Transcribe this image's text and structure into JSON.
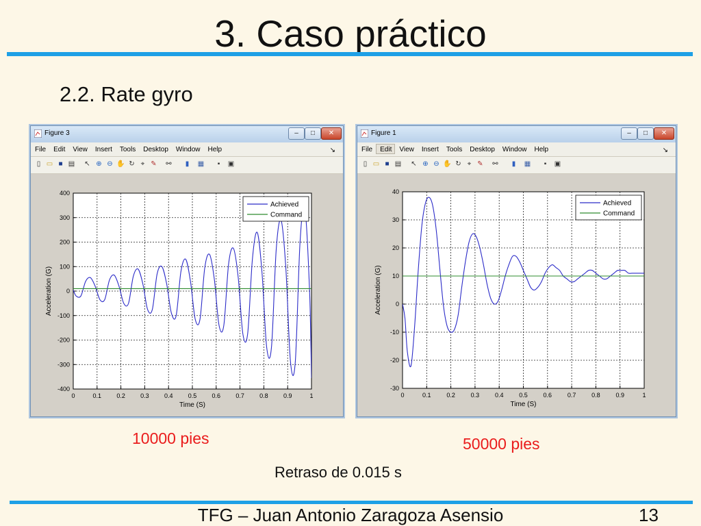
{
  "slide": {
    "title": "3. Caso práctico",
    "subtitle": "2.2. Rate gyro",
    "caption_left": "10000 pies",
    "caption_right": "50000 pies",
    "caption_center": "Retraso de 0.015 s",
    "footer": "TFG – Juan Antonio Zaragoza Asensio",
    "page_number": "13",
    "accent_color": "#1ea0e6",
    "caption_color": "#ea1c1c"
  },
  "windows": [
    {
      "title": "Figure 3",
      "menu": [
        "File",
        "Edit",
        "View",
        "Insert",
        "Tools",
        "Desktop",
        "Window",
        "Help"
      ],
      "controls": [
        "minimize",
        "maximize",
        "close"
      ],
      "toolbar_icons": [
        "new-figure-icon",
        "open-file-icon",
        "save-icon",
        "print-icon",
        "edit-plot-icon",
        "zoom-in-icon",
        "zoom-out-icon",
        "pan-icon",
        "rotate-icon",
        "data-cursor-icon",
        "brush-icon",
        "link-icon",
        "colorbar-icon",
        "legend-icon",
        "hide-plot-tools-icon",
        "show-plot-tools-icon"
      ]
    },
    {
      "title": "Figure 1",
      "menu": [
        "File",
        "Edit",
        "View",
        "Insert",
        "Tools",
        "Desktop",
        "Window",
        "Help"
      ],
      "controls": [
        "minimize",
        "maximize",
        "close"
      ],
      "toolbar_icons": [
        "new-figure-icon",
        "open-file-icon",
        "save-icon",
        "print-icon",
        "edit-plot-icon",
        "zoom-in-icon",
        "zoom-out-icon",
        "pan-icon",
        "rotate-icon",
        "data-cursor-icon",
        "brush-icon",
        "link-icon",
        "colorbar-icon",
        "legend-icon",
        "hide-plot-tools-icon",
        "show-plot-tools-icon"
      ]
    }
  ],
  "chart_data": [
    {
      "type": "line",
      "title": "",
      "xlabel": "Time (S)",
      "ylabel": "Acceleration (G)",
      "xlim": [
        0,
        1
      ],
      "ylim": [
        -400,
        400
      ],
      "xticks": [
        0,
        0.1,
        0.2,
        0.3,
        0.4,
        0.5,
        0.6,
        0.7,
        0.8,
        0.9,
        1
      ],
      "xtick_labels": [
        "0",
        "0.1",
        "0.2",
        "0.3",
        "0.4",
        "0.5",
        "0.6",
        "0.7",
        "0.8",
        "0.9",
        "1"
      ],
      "yticks": [
        400,
        300,
        200,
        100,
        0,
        -100,
        -200,
        -300,
        -400
      ],
      "ytick_labels": [
        "400",
        "300",
        "200",
        "100",
        "0",
        "-100",
        "-200",
        "-300",
        "-400"
      ],
      "grid": true,
      "legend_position": "top-right",
      "series": [
        {
          "name": "Achieved",
          "color": "#2b2bc8",
          "x": [
            0,
            0.012,
            0.032,
            0.052,
            0.072,
            0.092,
            0.112,
            0.132,
            0.152,
            0.172,
            0.192,
            0.212,
            0.232,
            0.252,
            0.272,
            0.292,
            0.312,
            0.332,
            0.352,
            0.372,
            0.392,
            0.412,
            0.432,
            0.452,
            0.472,
            0.492,
            0.512,
            0.532,
            0.552,
            0.572,
            0.592,
            0.612,
            0.632,
            0.652,
            0.672,
            0.692,
            0.712,
            0.732,
            0.752,
            0.772,
            0.792,
            0.812,
            0.832,
            0.852,
            0.872,
            0.892,
            0.912,
            0.932,
            0.952,
            0.972,
            0.992,
            1
          ],
          "y": [
            5,
            -20,
            -20,
            40,
            55,
            20,
            -35,
            -35,
            45,
            65,
            20,
            -50,
            -50,
            60,
            90,
            30,
            -75,
            -75,
            70,
            100,
            30,
            -90,
            -100,
            80,
            130,
            40,
            -115,
            -115,
            95,
            150,
            50,
            -140,
            -140,
            110,
            175,
            60,
            -175,
            -175,
            130,
            240,
            80,
            -230,
            -230,
            170,
            290,
            100,
            -290,
            -290,
            200,
            340,
            0,
            -355
          ]
        },
        {
          "name": "Command",
          "color": "#2e8b2e",
          "x": [
            0,
            1
          ],
          "y": [
            10,
            10
          ]
        }
      ]
    },
    {
      "type": "line",
      "title": "",
      "xlabel": "Time (S)",
      "ylabel": "Acceleration (G)",
      "xlim": [
        0,
        1
      ],
      "ylim": [
        -30,
        40
      ],
      "xticks": [
        0,
        0.1,
        0.2,
        0.3,
        0.4,
        0.5,
        0.6,
        0.7,
        0.8,
        0.9,
        1
      ],
      "xtick_labels": [
        "0",
        "0.1",
        "0.2",
        "0.3",
        "0.4",
        "0.5",
        "0.6",
        "0.7",
        "0.8",
        "0.9",
        "1"
      ],
      "yticks": [
        40,
        30,
        20,
        10,
        0,
        -10,
        -20,
        -30
      ],
      "ytick_labels": [
        "40",
        "30",
        "20",
        "10",
        "0",
        "-10",
        "-20",
        "-30"
      ],
      "grid": true,
      "legend_position": "top-right",
      "series": [
        {
          "name": "Achieved",
          "color": "#2b2bc8",
          "x": [
            0,
            0.01,
            0.02,
            0.035,
            0.05,
            0.065,
            0.08,
            0.095,
            0.11,
            0.125,
            0.14,
            0.155,
            0.17,
            0.185,
            0.2,
            0.215,
            0.23,
            0.245,
            0.26,
            0.275,
            0.29,
            0.305,
            0.32,
            0.335,
            0.35,
            0.365,
            0.38,
            0.395,
            0.41,
            0.425,
            0.44,
            0.455,
            0.47,
            0.485,
            0.5,
            0.515,
            0.53,
            0.545,
            0.56,
            0.575,
            0.59,
            0.605,
            0.62,
            0.635,
            0.65,
            0.665,
            0.68,
            0.695,
            0.71,
            0.725,
            0.74,
            0.755,
            0.77,
            0.785,
            0.8,
            0.815,
            0.83,
            0.845,
            0.86,
            0.875,
            0.89,
            0.905,
            0.92,
            0.935,
            0.95,
            0.965,
            0.98,
            1
          ],
          "y": [
            0,
            -5,
            -17,
            -22,
            -8,
            12,
            28,
            36,
            38,
            35,
            26,
            12,
            -1,
            -8,
            -10,
            -9,
            -4,
            6,
            15,
            22,
            25,
            24,
            20,
            14,
            7,
            2,
            0,
            1,
            5,
            10,
            14,
            17,
            17,
            15,
            12,
            9,
            6,
            5,
            6,
            8,
            11,
            13,
            14,
            13,
            12,
            10,
            9,
            8,
            8,
            9,
            10,
            11,
            12,
            12,
            11,
            10,
            9,
            9,
            10,
            11,
            12,
            12,
            12,
            11,
            11,
            11,
            11,
            11
          ]
        },
        {
          "name": "Command",
          "color": "#2e8b2e",
          "x": [
            0,
            1
          ],
          "y": [
            10,
            10
          ]
        }
      ]
    }
  ]
}
